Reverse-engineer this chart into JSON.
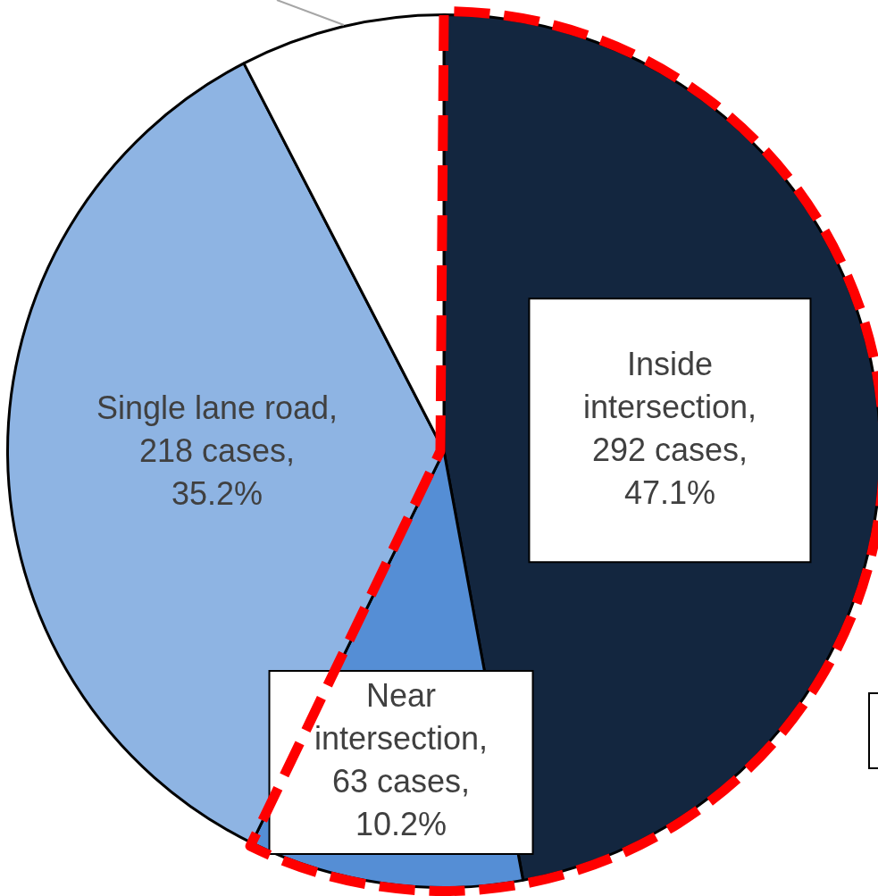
{
  "chart_data": {
    "type": "pie",
    "categories": [
      "Inside intersection",
      "Near intersection",
      "Single lane road",
      null
    ],
    "values": [
      292,
      63,
      218,
      47
    ],
    "colors": [
      "#13263f",
      "#558ed5",
      "#8eb4e3",
      "#ffffff"
    ],
    "value_labels": [
      ", 292 cases, 47.1%",
      ", 63 cases, 10.2%",
      ", 218 cases, 35.2%",
      null
    ]
  }
}
